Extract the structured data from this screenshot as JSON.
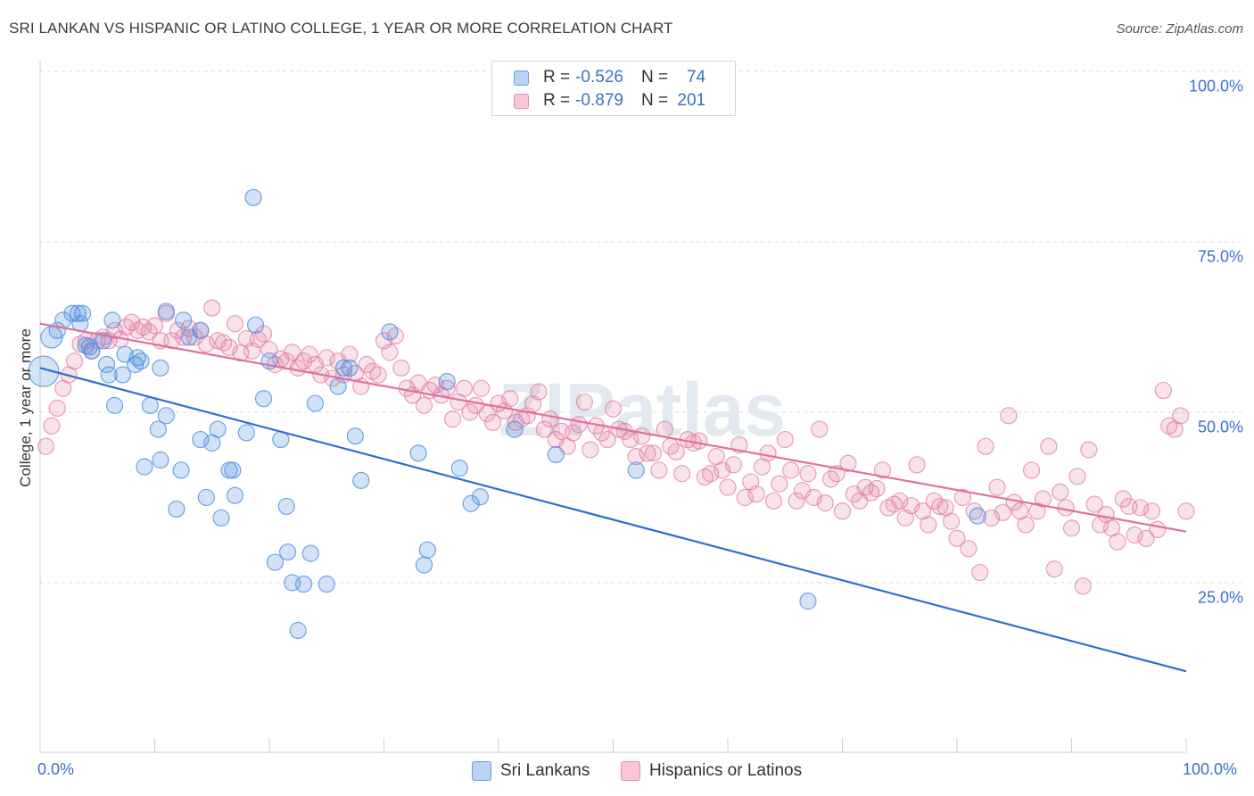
{
  "title": "SRI LANKAN VS HISPANIC OR LATINO COLLEGE, 1 YEAR OR MORE CORRELATION CHART",
  "source": "Source: ZipAtlas.com",
  "watermark": "ZIPatlas",
  "legend_top": {
    "rows": [
      {
        "r_label": "R =",
        "r_value": "-0.526",
        "n_label": "N =",
        "n_value": "74",
        "color": "#6d9fdc"
      },
      {
        "r_label": "R =",
        "r_value": "-0.879",
        "n_label": "N =",
        "n_value": "201",
        "color": "#e58fae"
      }
    ]
  },
  "legend_bottom": [
    {
      "label": "Sri Lankans",
      "color": "#6d9fdc"
    },
    {
      "label": "Hispanics or Latinos",
      "color": "#e58fae"
    }
  ],
  "chart_data": {
    "type": "scatter",
    "ylabel": "College, 1 year or more",
    "xlabel": "",
    "xlim": [
      0,
      100
    ],
    "ylim": [
      0,
      100
    ],
    "y_ticks": [
      "100.0%",
      "75.0%",
      "50.0%",
      "25.0%"
    ],
    "x_tick_left": "0.0%",
    "x_tick_right": "100.0%",
    "grid": "horizontal dashed",
    "colors": {
      "sri_lankans": "#4f8fe0",
      "hispanics": "#e27fa3",
      "blue_line": "#2f6fd1",
      "pink_line": "#e2709a"
    },
    "series": [
      {
        "name": "Sri Lankans",
        "trend": {
          "x0": 0,
          "y0": 56.5,
          "x1": 100,
          "y1": 12
        },
        "points": [
          [
            0.3,
            56
          ],
          [
            1,
            61
          ],
          [
            1.5,
            62
          ],
          [
            2,
            63.5
          ],
          [
            2.8,
            64.5
          ],
          [
            3.3,
            64.5
          ],
          [
            3.7,
            64.5
          ],
          [
            3.5,
            63
          ],
          [
            4,
            59.8
          ],
          [
            4.3,
            59.6
          ],
          [
            4.5,
            59
          ],
          [
            5.5,
            60.5
          ],
          [
            6.3,
            63.5
          ],
          [
            5.8,
            57
          ],
          [
            6,
            55.5
          ],
          [
            6.5,
            51
          ],
          [
            7.4,
            58.5
          ],
          [
            7.2,
            55.5
          ],
          [
            8.3,
            57
          ],
          [
            8.5,
            58
          ],
          [
            8.8,
            57.5
          ],
          [
            9.1,
            42
          ],
          [
            9.6,
            51
          ],
          [
            10.5,
            56.5
          ],
          [
            10.3,
            47.5
          ],
          [
            10.5,
            43
          ],
          [
            11,
            64.8
          ],
          [
            11,
            49.5
          ],
          [
            11.9,
            35.8
          ],
          [
            12.3,
            41.5
          ],
          [
            12.5,
            63.5
          ],
          [
            13,
            61
          ],
          [
            14,
            62
          ],
          [
            14,
            46
          ],
          [
            14.5,
            37.5
          ],
          [
            15,
            45.5
          ],
          [
            15.5,
            47.5
          ],
          [
            15.8,
            34.5
          ],
          [
            16.5,
            41.5
          ],
          [
            16.8,
            41.5
          ],
          [
            17,
            37.8
          ],
          [
            18,
            47
          ],
          [
            18.6,
            81.5
          ],
          [
            18.8,
            62.8
          ],
          [
            19.5,
            52
          ],
          [
            20,
            57.5
          ],
          [
            20.5,
            28
          ],
          [
            21,
            46
          ],
          [
            21.5,
            36.2
          ],
          [
            21.6,
            29.5
          ],
          [
            22,
            25
          ],
          [
            22.5,
            18
          ],
          [
            23,
            24.8
          ],
          [
            23.6,
            29.3
          ],
          [
            24,
            51.3
          ],
          [
            25,
            24.8
          ],
          [
            26,
            53.8
          ],
          [
            26.5,
            56.5
          ],
          [
            27,
            56.5
          ],
          [
            27.5,
            46.5
          ],
          [
            28,
            40
          ],
          [
            30.5,
            61.8
          ],
          [
            33,
            44
          ],
          [
            33.5,
            27.6
          ],
          [
            33.8,
            29.8
          ],
          [
            35.5,
            54.5
          ],
          [
            36.6,
            41.8
          ],
          [
            37.6,
            36.6
          ],
          [
            38.4,
            37.6
          ],
          [
            41.4,
            47.5
          ],
          [
            45,
            43.8
          ],
          [
            52,
            41.5
          ],
          [
            67,
            22.3
          ],
          [
            81.8,
            34.8
          ]
        ]
      },
      {
        "name": "Hispanics or Latinos",
        "trend": {
          "x0": 0,
          "y0": 63,
          "x1": 100,
          "y1": 32.5
        },
        "points": [
          [
            0.5,
            45
          ],
          [
            1,
            48
          ],
          [
            1.5,
            50.6
          ],
          [
            2,
            53.5
          ],
          [
            2.5,
            55.5
          ],
          [
            3,
            57.5
          ],
          [
            3.5,
            60
          ],
          [
            4,
            60.5
          ],
          [
            4.5,
            59
          ],
          [
            5,
            60.5
          ],
          [
            5.5,
            61
          ],
          [
            6,
            60.5
          ],
          [
            6.5,
            62
          ],
          [
            7,
            60.7
          ],
          [
            7.5,
            62.5
          ],
          [
            8,
            63.2
          ],
          [
            8.5,
            62
          ],
          [
            9,
            62.5
          ],
          [
            9.5,
            61.8
          ],
          [
            10,
            62.7
          ],
          [
            10.5,
            60.5
          ],
          [
            11,
            64.5
          ],
          [
            11.5,
            60.5
          ],
          [
            12,
            62
          ],
          [
            12.5,
            61
          ],
          [
            13,
            62.3
          ],
          [
            13.5,
            61
          ],
          [
            14,
            62
          ],
          [
            14.5,
            60
          ],
          [
            15,
            65.3
          ],
          [
            15.5,
            60.5
          ],
          [
            16,
            60.2
          ],
          [
            16.5,
            59.5
          ],
          [
            17,
            63
          ],
          [
            17.5,
            58.7
          ],
          [
            18,
            60.8
          ],
          [
            18.5,
            59
          ],
          [
            19,
            60.7
          ],
          [
            19.5,
            61.5
          ],
          [
            20,
            59.2
          ],
          [
            20.5,
            57
          ],
          [
            21,
            57.8
          ],
          [
            21.5,
            57.5
          ],
          [
            22,
            58.8
          ],
          [
            22.5,
            56.5
          ],
          [
            23,
            57.5
          ],
          [
            23.5,
            58.5
          ],
          [
            24,
            57
          ],
          [
            24.5,
            55.5
          ],
          [
            25,
            58
          ],
          [
            25.5,
            55
          ],
          [
            26,
            57.5
          ],
          [
            26.5,
            55.5
          ],
          [
            27,
            58.5
          ],
          [
            27.5,
            55.7
          ],
          [
            28,
            53.8
          ],
          [
            28.5,
            57
          ],
          [
            29,
            56
          ],
          [
            29.5,
            55.5
          ],
          [
            30,
            60.5
          ],
          [
            30.5,
            58.8
          ],
          [
            31,
            61.2
          ],
          [
            31.5,
            56.5
          ],
          [
            32,
            53.5
          ],
          [
            32.5,
            52.5
          ],
          [
            33,
            54.3
          ],
          [
            33.5,
            51
          ],
          [
            34,
            53.2
          ],
          [
            34.5,
            54
          ],
          [
            35,
            52.5
          ],
          [
            35.5,
            53.5
          ],
          [
            36,
            49
          ],
          [
            36.5,
            51.5
          ],
          [
            37,
            53.5
          ],
          [
            37.5,
            50
          ],
          [
            38,
            51
          ],
          [
            38.5,
            53.5
          ],
          [
            39,
            49.8
          ],
          [
            39.5,
            48.5
          ],
          [
            40,
            51.3
          ],
          [
            40.5,
            50.2
          ],
          [
            41,
            52
          ],
          [
            41.5,
            48.5
          ],
          [
            42,
            49
          ],
          [
            42.5,
            49.5
          ],
          [
            43,
            51.2
          ],
          [
            43.5,
            53
          ],
          [
            44,
            47.5
          ],
          [
            44.5,
            49
          ],
          [
            45,
            46
          ],
          [
            45.5,
            47.2
          ],
          [
            46,
            45
          ],
          [
            46.5,
            47
          ],
          [
            47,
            48.2
          ],
          [
            47.5,
            51.5
          ],
          [
            48,
            44.5
          ],
          [
            48.5,
            48
          ],
          [
            49,
            47
          ],
          [
            49.5,
            46
          ],
          [
            50,
            50.5
          ],
          [
            50.5,
            47.5
          ],
          [
            51,
            47.2
          ],
          [
            51.5,
            46
          ],
          [
            52,
            43.5
          ],
          [
            52.5,
            46.5
          ],
          [
            53,
            44
          ],
          [
            53.5,
            44
          ],
          [
            54,
            41.5
          ],
          [
            54.5,
            47.5
          ],
          [
            55,
            45
          ],
          [
            55.5,
            44.2
          ],
          [
            56,
            41
          ],
          [
            56.5,
            46
          ],
          [
            57,
            45.5
          ],
          [
            57.5,
            45.8
          ],
          [
            58,
            40.5
          ],
          [
            58.5,
            41
          ],
          [
            59,
            43.5
          ],
          [
            59.5,
            41.5
          ],
          [
            60,
            39
          ],
          [
            60.5,
            42.3
          ],
          [
            61,
            45.2
          ],
          [
            61.5,
            37.5
          ],
          [
            62,
            39.8
          ],
          [
            62.5,
            38
          ],
          [
            63,
            42
          ],
          [
            63.5,
            44
          ],
          [
            64,
            37
          ],
          [
            64.5,
            39.5
          ],
          [
            65,
            46
          ],
          [
            65.5,
            41.5
          ],
          [
            66,
            37
          ],
          [
            66.5,
            38.5
          ],
          [
            67,
            41
          ],
          [
            67.5,
            37.5
          ],
          [
            68,
            47.5
          ],
          [
            68.5,
            36.7
          ],
          [
            69,
            40.2
          ],
          [
            69.5,
            41
          ],
          [
            70,
            35.5
          ],
          [
            70.5,
            42.5
          ],
          [
            71,
            38
          ],
          [
            71.5,
            37
          ],
          [
            72,
            39
          ],
          [
            72.5,
            38.2
          ],
          [
            73,
            38.8
          ],
          [
            73.5,
            41.5
          ],
          [
            74,
            36
          ],
          [
            74.5,
            36.5
          ],
          [
            75,
            37
          ],
          [
            75.5,
            34.5
          ],
          [
            76,
            36.3
          ],
          [
            76.5,
            42.3
          ],
          [
            77,
            35.5
          ],
          [
            77.5,
            33.5
          ],
          [
            78,
            37
          ],
          [
            78.5,
            36.2
          ],
          [
            79,
            36
          ],
          [
            79.5,
            34
          ],
          [
            80,
            31.5
          ],
          [
            80.5,
            37.5
          ],
          [
            81,
            30
          ],
          [
            81.5,
            35.5
          ],
          [
            82,
            26.5
          ],
          [
            82.5,
            45
          ],
          [
            83,
            34.5
          ],
          [
            83.5,
            39
          ],
          [
            84,
            35.3
          ],
          [
            84.5,
            49.5
          ],
          [
            85,
            36.8
          ],
          [
            85.5,
            35.5
          ],
          [
            86,
            33.5
          ],
          [
            86.5,
            41.5
          ],
          [
            87,
            35.5
          ],
          [
            87.5,
            37.3
          ],
          [
            88,
            45
          ],
          [
            88.5,
            27
          ],
          [
            89,
            38.3
          ],
          [
            89.5,
            36
          ],
          [
            90,
            33
          ],
          [
            90.5,
            40.6
          ],
          [
            91,
            24.5
          ],
          [
            91.5,
            44.5
          ],
          [
            92,
            36.5
          ],
          [
            92.5,
            33.5
          ],
          [
            93,
            35
          ],
          [
            93.5,
            33
          ],
          [
            94,
            31
          ],
          [
            94.5,
            37.3
          ],
          [
            95,
            36.2
          ],
          [
            95.5,
            32
          ],
          [
            96,
            36
          ],
          [
            96.5,
            31.5
          ],
          [
            97,
            35.5
          ],
          [
            97.5,
            32.8
          ],
          [
            98,
            53.2
          ],
          [
            98.5,
            48
          ],
          [
            99,
            47.5
          ],
          [
            99.5,
            49.5
          ],
          [
            100,
            35.5
          ]
        ]
      }
    ]
  }
}
